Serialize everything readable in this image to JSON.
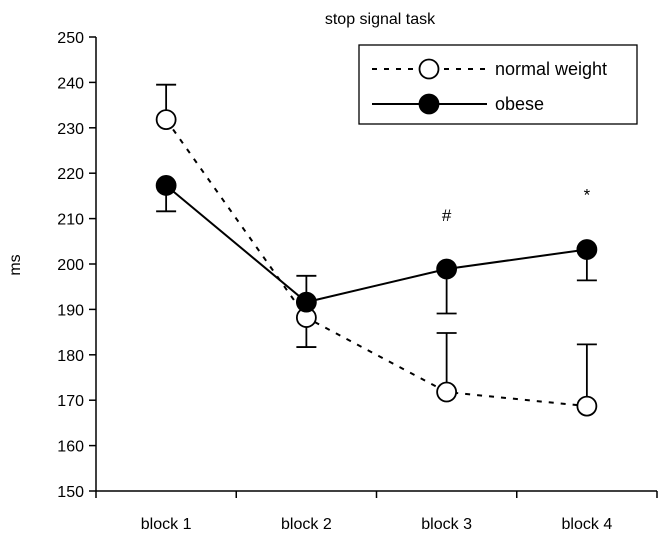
{
  "chart_data": {
    "type": "line",
    "title": "stop signal task",
    "xlabel": "",
    "ylabel": "ms",
    "categories": [
      "block 1",
      "block 2",
      "block 3",
      "block 4"
    ],
    "ylim": [
      150,
      250
    ],
    "yticks": [
      150,
      160,
      170,
      180,
      190,
      200,
      210,
      220,
      230,
      240,
      250
    ],
    "grid": false,
    "legend_position": "top-right",
    "series": [
      {
        "name": "normal weight",
        "values": [
          231.8,
          188.2,
          171.8,
          168.7
        ],
        "error_up": [
          7.7,
          0,
          13.0,
          13.6
        ],
        "error_down": [
          0,
          6.5,
          0,
          0
        ],
        "line_style": "dashed",
        "marker": "open-circle"
      },
      {
        "name": "obese",
        "values": [
          217.3,
          191.6,
          198.9,
          203.2
        ],
        "error_up": [
          0,
          5.8,
          0,
          0
        ],
        "error_down": [
          5.7,
          0,
          9.8,
          6.8
        ],
        "line_style": "solid",
        "marker": "filled-circle"
      }
    ],
    "annotations": [
      {
        "category": "block 3",
        "text": "#",
        "y": 209.5
      },
      {
        "category": "block 4",
        "text": "*",
        "y": 214
      }
    ]
  }
}
